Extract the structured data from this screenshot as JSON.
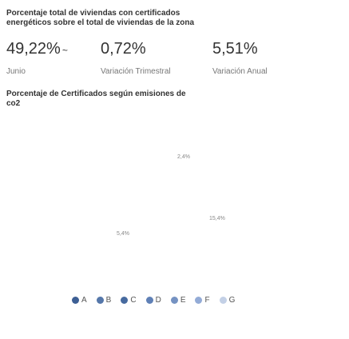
{
  "header": {
    "title_line1": "Porcentaje total de viviendas con certificados",
    "title_line2": "energéticos sobre el total de viviendas de la zona"
  },
  "kpis": [
    {
      "value": "49,22%",
      "marker": "~",
      "label": "Junio"
    },
    {
      "value": "0,72%",
      "label": "Variación Trimestral"
    },
    {
      "value": "5,51%",
      "label": "Variación Anual"
    }
  ],
  "section": {
    "title_line1": "Porcentaje de Certificados según emisiones de",
    "title_line2": "co2"
  },
  "pie_labels": [
    "2,4%",
    "15,4%",
    "5,4%"
  ],
  "legend": [
    {
      "name": "A",
      "color": "#3d5f94"
    },
    {
      "name": "B",
      "color": "#5577aa"
    },
    {
      "name": "C",
      "color": "#476a9f"
    },
    {
      "name": "D",
      "color": "#5f80b6"
    },
    {
      "name": "E",
      "color": "#7592c2"
    },
    {
      "name": "F",
      "color": "#93abd6"
    },
    {
      "name": "G",
      "color": "#c3d0e6"
    }
  ]
}
